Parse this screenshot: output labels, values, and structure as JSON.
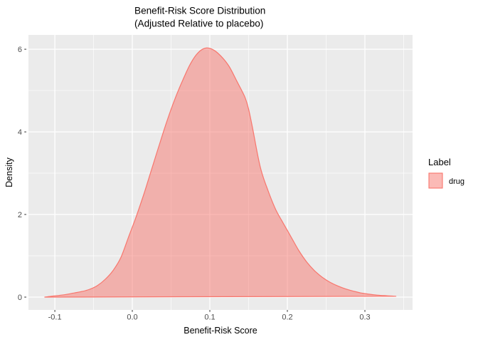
{
  "title": {
    "line1": "Benefit-Risk Score Distribution",
    "line2": "(Adjusted Relative to placebo)"
  },
  "axes": {
    "x": {
      "label": "Benefit-Risk Score",
      "major_ticks": [
        -0.1,
        0.0,
        0.1,
        0.2,
        0.3
      ],
      "major_tick_labels": [
        "-0.1",
        "0.0",
        "0.1",
        "0.2",
        "0.3"
      ],
      "minor_ticks": [
        -0.05,
        0.05,
        0.15,
        0.25,
        0.35
      ]
    },
    "y": {
      "label": "Density",
      "major_ticks": [
        0,
        2,
        4,
        6
      ],
      "major_tick_labels": [
        "0",
        "2",
        "4",
        "6"
      ],
      "minor_ticks": [
        1,
        3,
        5
      ]
    }
  },
  "legend": {
    "title": "Label",
    "items": [
      {
        "label": "drug",
        "swatch_fill": "#F8766D",
        "swatch_opacity": 0.5,
        "swatch_stroke": "#F8766D"
      }
    ]
  },
  "colors": {
    "panel_bg": "#EBEBEB",
    "grid": "#FFFFFF",
    "curve_stroke": "#F8766D",
    "curve_fill": "#F8766D",
    "curve_fill_opacity": 0.5,
    "tick_mark": "#333333",
    "tick_label": "#4D4D4D",
    "text": "#000000"
  },
  "chart_data": {
    "type": "area",
    "title": "Benefit-Risk Score Distribution (Adjusted Relative to placebo)",
    "xlabel": "Benefit-Risk Score",
    "ylabel": "Density",
    "xlim": [
      -0.134,
      0.3615
    ],
    "ylim": [
      -0.311,
      6.347
    ],
    "grid": "on",
    "legend_position": "right",
    "peak": {
      "x": 0.095,
      "density": 6.03
    },
    "series": [
      {
        "name": "drug",
        "points": [
          [
            -0.113,
            0.0
          ],
          [
            -0.105,
            0.02
          ],
          [
            -0.095,
            0.04
          ],
          [
            -0.085,
            0.065
          ],
          [
            -0.075,
            0.1
          ],
          [
            -0.065,
            0.135
          ],
          [
            -0.055,
            0.19
          ],
          [
            -0.045,
            0.28
          ],
          [
            -0.035,
            0.43
          ],
          [
            -0.025,
            0.64
          ],
          [
            -0.015,
            0.95
          ],
          [
            -0.005,
            1.45
          ],
          [
            0.005,
            1.95
          ],
          [
            0.015,
            2.5
          ],
          [
            0.025,
            3.1
          ],
          [
            0.035,
            3.7
          ],
          [
            0.045,
            4.28
          ],
          [
            0.055,
            4.8
          ],
          [
            0.065,
            5.25
          ],
          [
            0.075,
            5.65
          ],
          [
            0.085,
            5.92
          ],
          [
            0.095,
            6.03
          ],
          [
            0.105,
            5.98
          ],
          [
            0.115,
            5.82
          ],
          [
            0.125,
            5.58
          ],
          [
            0.135,
            5.22
          ],
          [
            0.145,
            4.85
          ],
          [
            0.15,
            4.55
          ],
          [
            0.155,
            4.1
          ],
          [
            0.165,
            3.15
          ],
          [
            0.175,
            2.58
          ],
          [
            0.185,
            2.12
          ],
          [
            0.195,
            1.78
          ],
          [
            0.205,
            1.45
          ],
          [
            0.215,
            1.12
          ],
          [
            0.225,
            0.85
          ],
          [
            0.235,
            0.64
          ],
          [
            0.245,
            0.48
          ],
          [
            0.255,
            0.36
          ],
          [
            0.265,
            0.27
          ],
          [
            0.275,
            0.2
          ],
          [
            0.285,
            0.145
          ],
          [
            0.295,
            0.1
          ],
          [
            0.305,
            0.07
          ],
          [
            0.315,
            0.05
          ],
          [
            0.325,
            0.035
          ],
          [
            0.335,
            0.025
          ],
          [
            0.34,
            0.02
          ]
        ]
      }
    ]
  }
}
